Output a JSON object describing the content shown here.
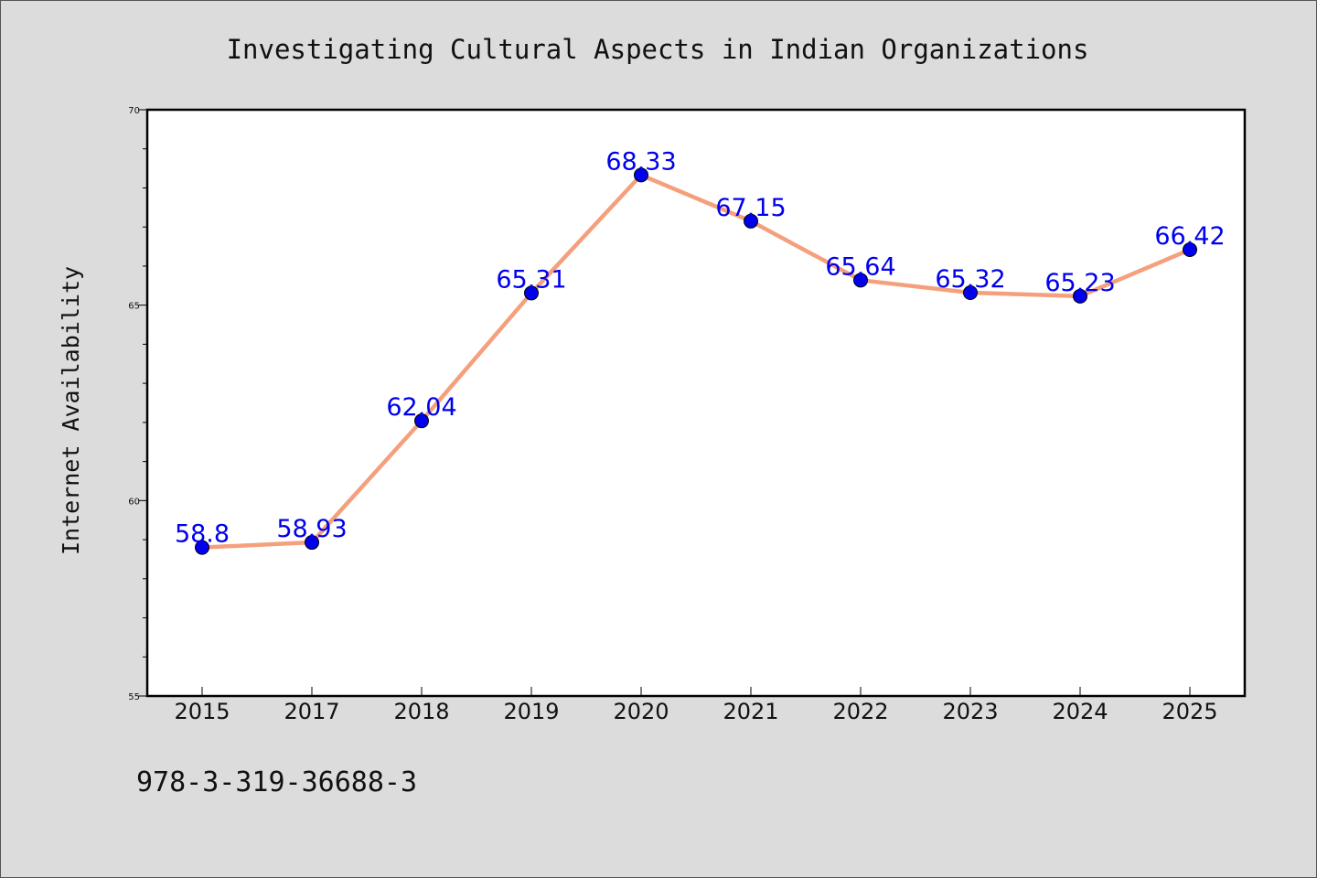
{
  "chart_data": {
    "type": "line",
    "title": "Investigating Cultural Aspects in Indian Organizations",
    "xlabel": "",
    "ylabel": "Internet Availability",
    "categories": [
      "2015",
      "2017",
      "2018",
      "2019",
      "2020",
      "2021",
      "2022",
      "2023",
      "2024",
      "2025"
    ],
    "values": [
      58.8,
      58.93,
      62.04,
      65.31,
      68.33,
      67.15,
      65.64,
      65.32,
      65.23,
      66.42
    ],
    "data_labels": [
      "58.8",
      "58.93",
      "62.04",
      "65.31",
      "68.33",
      "67.15",
      "65.64",
      "65.32",
      "65.23",
      "66.42"
    ],
    "ylim": [
      55,
      70
    ],
    "y_major_ticks": [
      55,
      60,
      65,
      70
    ],
    "y_minor_tick_step": 1,
    "grid": false,
    "legend": "none",
    "line_color": "#f4a07c",
    "marker_color": "#0000ee",
    "label_color": "#0000ee"
  },
  "footer": {
    "text": "978-3-319-36688-3"
  }
}
